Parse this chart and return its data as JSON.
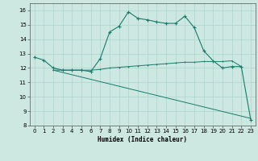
{
  "xlabel": "Humidex (Indice chaleur)",
  "bg_color": "#cce8e0",
  "line_color": "#1a7a6e",
  "grid_color": "#aad4cc",
  "xlim": [
    -0.5,
    23.5
  ],
  "ylim": [
    8,
    16.5
  ],
  "xticks": [
    0,
    1,
    2,
    3,
    4,
    5,
    6,
    7,
    8,
    9,
    10,
    11,
    12,
    13,
    14,
    15,
    16,
    17,
    18,
    19,
    20,
    21,
    22,
    23
  ],
  "yticks": [
    8,
    9,
    10,
    11,
    12,
    13,
    14,
    15,
    16
  ],
  "line1_x": [
    0,
    1,
    2,
    3,
    4,
    5,
    6,
    7,
    8,
    9,
    10,
    11,
    12,
    13,
    14,
    15,
    16,
    17,
    18,
    19,
    20,
    21,
    22,
    23
  ],
  "line1_y": [
    12.75,
    12.55,
    12.0,
    11.85,
    11.85,
    11.85,
    11.75,
    12.65,
    14.5,
    14.9,
    15.9,
    15.45,
    15.35,
    15.2,
    15.1,
    15.1,
    15.6,
    14.8,
    13.2,
    12.5,
    12.0,
    12.1,
    12.1,
    8.4
  ],
  "line2_x": [
    2,
    23
  ],
  "line2_y": [
    11.85,
    8.5
  ],
  "line3_x": [
    2,
    3,
    4,
    5,
    6,
    7,
    8,
    9,
    10,
    11,
    12,
    13,
    14,
    15,
    16,
    17,
    18,
    19,
    20,
    21,
    22
  ],
  "line3_y": [
    11.85,
    11.85,
    11.85,
    11.85,
    11.85,
    11.9,
    12.0,
    12.05,
    12.1,
    12.15,
    12.2,
    12.25,
    12.3,
    12.35,
    12.4,
    12.4,
    12.45,
    12.45,
    12.45,
    12.5,
    12.1
  ],
  "label_fontsize": 5.5,
  "tick_fontsize": 5.0
}
